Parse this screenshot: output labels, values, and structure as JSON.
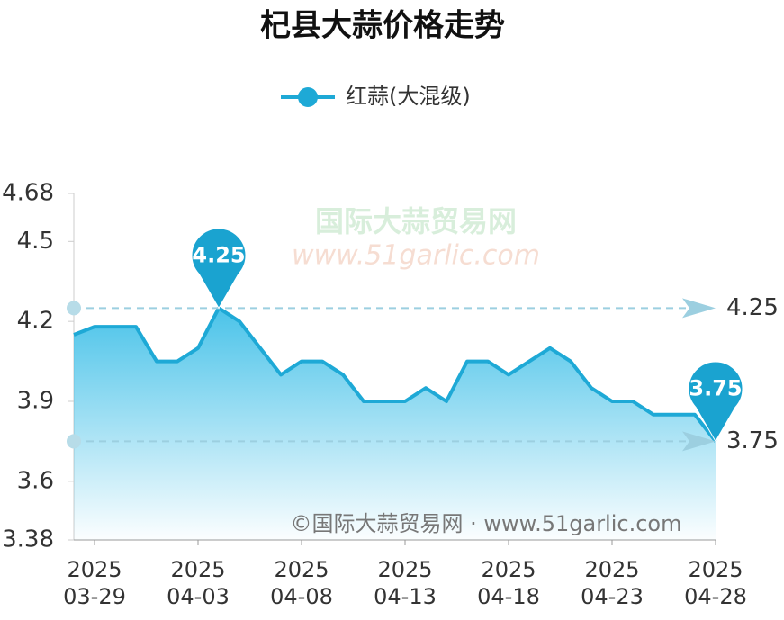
{
  "chart_data": {
    "type": "line",
    "title": "杞县大蒜价格走势",
    "categories": [
      "2025-03-28",
      "2025-03-29",
      "2025-03-30",
      "2025-03-31",
      "2025-04-01",
      "2025-04-02",
      "2025-04-03",
      "2025-04-04",
      "2025-04-05",
      "2025-04-06",
      "2025-04-07",
      "2025-04-08",
      "2025-04-09",
      "2025-04-10",
      "2025-04-11",
      "2025-04-12",
      "2025-04-13",
      "2025-04-14",
      "2025-04-15",
      "2025-04-16",
      "2025-04-17",
      "2025-04-18",
      "2025-04-19",
      "2025-04-20",
      "2025-04-21",
      "2025-04-22",
      "2025-04-23",
      "2025-04-24",
      "2025-04-25",
      "2025-04-26",
      "2025-04-27",
      "2025-04-28"
    ],
    "series": [
      {
        "name": "红蒜(大混级)",
        "color": "#1ea9d6",
        "values": [
          4.15,
          4.18,
          4.18,
          4.18,
          4.05,
          4.05,
          4.1,
          4.25,
          4.2,
          4.1,
          4.0,
          4.05,
          4.05,
          4.0,
          3.9,
          3.9,
          3.9,
          3.95,
          3.9,
          4.05,
          4.05,
          4.0,
          4.05,
          4.1,
          4.05,
          3.95,
          3.9,
          3.9,
          3.85,
          3.85,
          3.85,
          3.75
        ]
      }
    ],
    "ylim": [
      3.38,
      4.68
    ],
    "yticks": [
      3.38,
      3.6,
      3.9,
      4.2,
      4.5,
      4.68
    ],
    "xticks": [
      {
        "value": "2025-03-29",
        "label": "2025\n03-29"
      },
      {
        "value": "2025-04-03",
        "label": "2025\n04-03"
      },
      {
        "value": "2025-04-08",
        "label": "2025\n04-08"
      },
      {
        "value": "2025-04-13",
        "label": "2025\n04-13"
      },
      {
        "value": "2025-04-18",
        "label": "2025\n04-18"
      },
      {
        "value": "2025-04-23",
        "label": "2025\n04-23"
      },
      {
        "value": "2025-04-28",
        "label": "2025\n04-28"
      }
    ],
    "mark_points": [
      4.25,
      3.75
    ],
    "mark_lines": [
      4.25,
      3.75
    ],
    "watermarks": [
      "国际大蒜贸易网",
      "www.51garlic.com",
      "©国际大蒜贸易网 · www.51garlic.com"
    ]
  }
}
